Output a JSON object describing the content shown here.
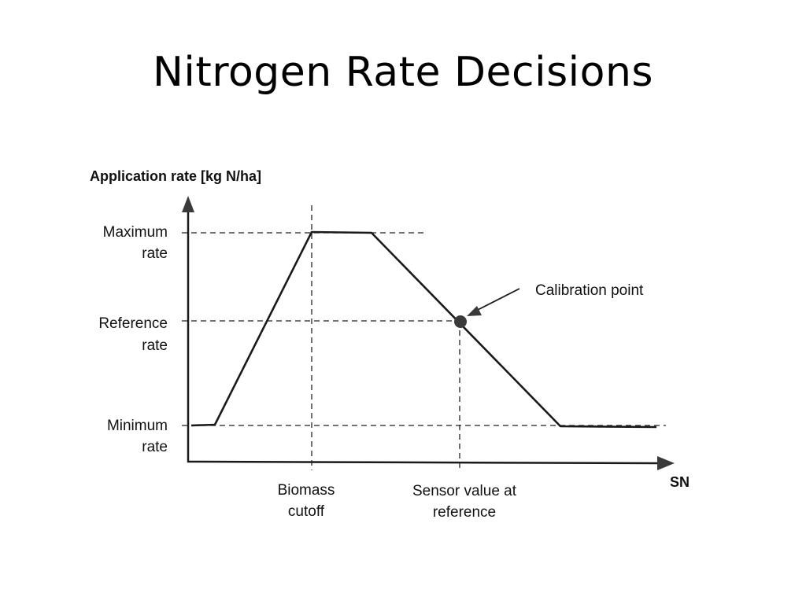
{
  "slide": {
    "title": "Nitrogen Rate Decisions"
  },
  "diagram": {
    "y_axis_title": "Application rate [kg N/ha]",
    "x_axis_title": "SN",
    "y_levels": [
      {
        "line1": "Maximum",
        "line2": "rate"
      },
      {
        "line1": "Reference",
        "line2": "rate"
      },
      {
        "line1": "Minimum",
        "line2": "rate"
      }
    ],
    "x_markers": [
      {
        "line1": "Biomass",
        "line2": "cutoff"
      },
      {
        "line1": "Sensor value at",
        "line2": "reference"
      }
    ],
    "callout": "Calibration point",
    "colors": {
      "line": "#1a1a1a",
      "dashes": "#222222",
      "point": "#3a3a3a"
    }
  }
}
